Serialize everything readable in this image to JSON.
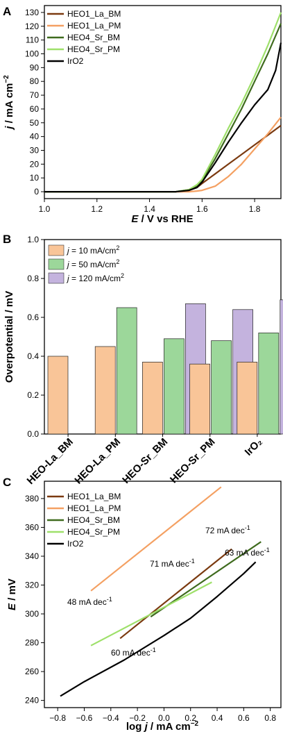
{
  "chart_data": [
    {
      "type": "line",
      "panel": "A",
      "xlabel_var": "E",
      "xlabel_rest": " / V vs RHE",
      "ylabel_var": "j",
      "ylabel_rest": " / mA cm",
      "ylabel_sup": "−2",
      "xlim": [
        1.0,
        1.9
      ],
      "ylim": [
        -5,
        135
      ],
      "xticks": [
        "1.0",
        "1.2",
        "1.4",
        "1.6",
        "1.8"
      ],
      "xtick_values": [
        1.0,
        1.2,
        1.4,
        1.6,
        1.8
      ],
      "yticks": [
        "0",
        "10",
        "20",
        "30",
        "40",
        "50",
        "60",
        "70",
        "80",
        "90",
        "100",
        "110",
        "120",
        "130"
      ],
      "ytick_values": [
        0,
        10,
        20,
        30,
        40,
        50,
        60,
        70,
        80,
        90,
        100,
        110,
        120,
        130
      ],
      "legend_position": "top-left",
      "series": [
        {
          "name": "HEO1_La_BM",
          "color": "#7b3a10",
          "x": [
            1.0,
            1.5,
            1.55,
            1.58,
            1.6,
            1.65,
            1.7,
            1.75,
            1.8,
            1.85,
            1.9
          ],
          "y": [
            0,
            0,
            1,
            3,
            6,
            13,
            20,
            27,
            34,
            41,
            48
          ]
        },
        {
          "name": "HEO1_La_PM",
          "color": "#f4a062",
          "x": [
            1.0,
            1.55,
            1.58,
            1.6,
            1.65,
            1.7,
            1.75,
            1.8,
            1.85,
            1.9
          ],
          "y": [
            0,
            0,
            0.5,
            1,
            4,
            11,
            20,
            31,
            42,
            54
          ]
        },
        {
          "name": "HEO4_Sr_BM",
          "color": "#3f6b1e",
          "x": [
            1.0,
            1.5,
            1.55,
            1.58,
            1.6,
            1.65,
            1.7,
            1.75,
            1.8,
            1.85,
            1.9
          ],
          "y": [
            0,
            0,
            1.5,
            4,
            8,
            24,
            42,
            60,
            80,
            100,
            122
          ]
        },
        {
          "name": "HEO4_Sr_PM",
          "color": "#9ee06a",
          "x": [
            1.0,
            1.5,
            1.55,
            1.58,
            1.6,
            1.65,
            1.7,
            1.75,
            1.8,
            1.85,
            1.9
          ],
          "y": [
            0,
            0,
            1.5,
            5,
            9,
            27,
            46,
            64,
            84,
            106,
            130
          ]
        },
        {
          "name": "IrO2",
          "color": "#000000",
          "x": [
            1.0,
            1.5,
            1.55,
            1.58,
            1.6,
            1.65,
            1.7,
            1.75,
            1.8,
            1.85,
            1.88,
            1.9
          ],
          "y": [
            0,
            0,
            1,
            3,
            7,
            21,
            36,
            50,
            63,
            74,
            88,
            108
          ]
        }
      ]
    },
    {
      "type": "bar",
      "panel": "B",
      "ylabel": "Overpotential / mV",
      "ylim": [
        0,
        1.0
      ],
      "yticks": [
        "0.0",
        "0.2",
        "0.4",
        "0.6",
        "0.8",
        "1.0"
      ],
      "ytick_values": [
        0,
        0.2,
        0.4,
        0.6,
        0.8,
        1.0
      ],
      "categories": [
        "HEO-La_BM",
        "HEO-La_PM",
        "HEO-Sr_BM",
        "HEO-Sr_PM",
        "IrO₂"
      ],
      "legend_position": "top-left",
      "series": [
        {
          "name_var": "j",
          "name_rest": " = 10 mA/cm",
          "name_sup": "2",
          "color": "#f9c598",
          "values": [
            0.4,
            0.45,
            0.37,
            0.36,
            0.37
          ]
        },
        {
          "name_var": "j",
          "name_rest": " = 50 mA/cm",
          "name_sup": "2",
          "color": "#9cd79a",
          "values": [
            null,
            0.65,
            0.49,
            0.48,
            0.52
          ]
        },
        {
          "name_var": "j",
          "name_rest": " = 120 mA/cm",
          "name_sup": "2",
          "color": "#c4b3de",
          "values": [
            null,
            null,
            0.67,
            0.64,
            0.69
          ]
        }
      ]
    },
    {
      "type": "line",
      "panel": "C",
      "xlabel_pre": "log ",
      "xlabel_var": "j",
      "xlabel_rest": " / mA cm",
      "xlabel_sup": "−2",
      "ylabel_var": "E",
      "ylabel_rest": " / mV",
      "xlim": [
        -0.9,
        0.88
      ],
      "ylim": [
        235,
        392
      ],
      "xticks": [
        "−0.8",
        "−0.6",
        "−0.4",
        "−0.2",
        "0.0",
        "0.2",
        "0.4",
        "0.6",
        "0.8"
      ],
      "xtick_values": [
        -0.8,
        -0.6,
        -0.4,
        -0.2,
        0.0,
        0.2,
        0.4,
        0.6,
        0.8
      ],
      "yticks": [
        "240",
        "260",
        "280",
        "300",
        "320",
        "340",
        "360",
        "380"
      ],
      "ytick_values": [
        240,
        260,
        280,
        300,
        320,
        340,
        360,
        380
      ],
      "legend_position": "top-left",
      "series": [
        {
          "name": "HEO1_La_BM",
          "color": "#7b3a10",
          "x": [
            -0.33,
            0.51
          ],
          "y": [
            283,
            345
          ]
        },
        {
          "name": "HEO1_La_PM",
          "color": "#f4a062",
          "x": [
            -0.55,
            0.43
          ],
          "y": [
            316,
            388
          ]
        },
        {
          "name": "HEO4_Sr_BM",
          "color": "#3f6b1e",
          "x": [
            -0.1,
            0.73
          ],
          "y": [
            298,
            350
          ]
        },
        {
          "name": "HEO4_Sr_PM",
          "color": "#9ee06a",
          "x": [
            -0.55,
            0.36
          ],
          "y": [
            278,
            322
          ]
        },
        {
          "name": "IrO2",
          "color": "#000000",
          "x": [
            -0.78,
            -0.6,
            -0.3,
            0.0,
            0.2,
            0.4,
            0.6,
            0.69
          ],
          "y": [
            243,
            253,
            268,
            285,
            297,
            312,
            328,
            336
          ]
        }
      ],
      "annotations": [
        {
          "text": "72 mA dec",
          "sup": "-1",
          "color": "#f4a062"
        },
        {
          "text": "63 mA dec",
          "sup": "-1",
          "color": "#3f6b1e"
        },
        {
          "text": "71 mA dec",
          "sup": "-1",
          "color": "#7b3a10"
        },
        {
          "text": "48 mA dec",
          "sup": "-1",
          "color": "#9ee06a"
        },
        {
          "text": "60 mA dec",
          "sup": "-1",
          "color": "#000000"
        }
      ]
    }
  ]
}
